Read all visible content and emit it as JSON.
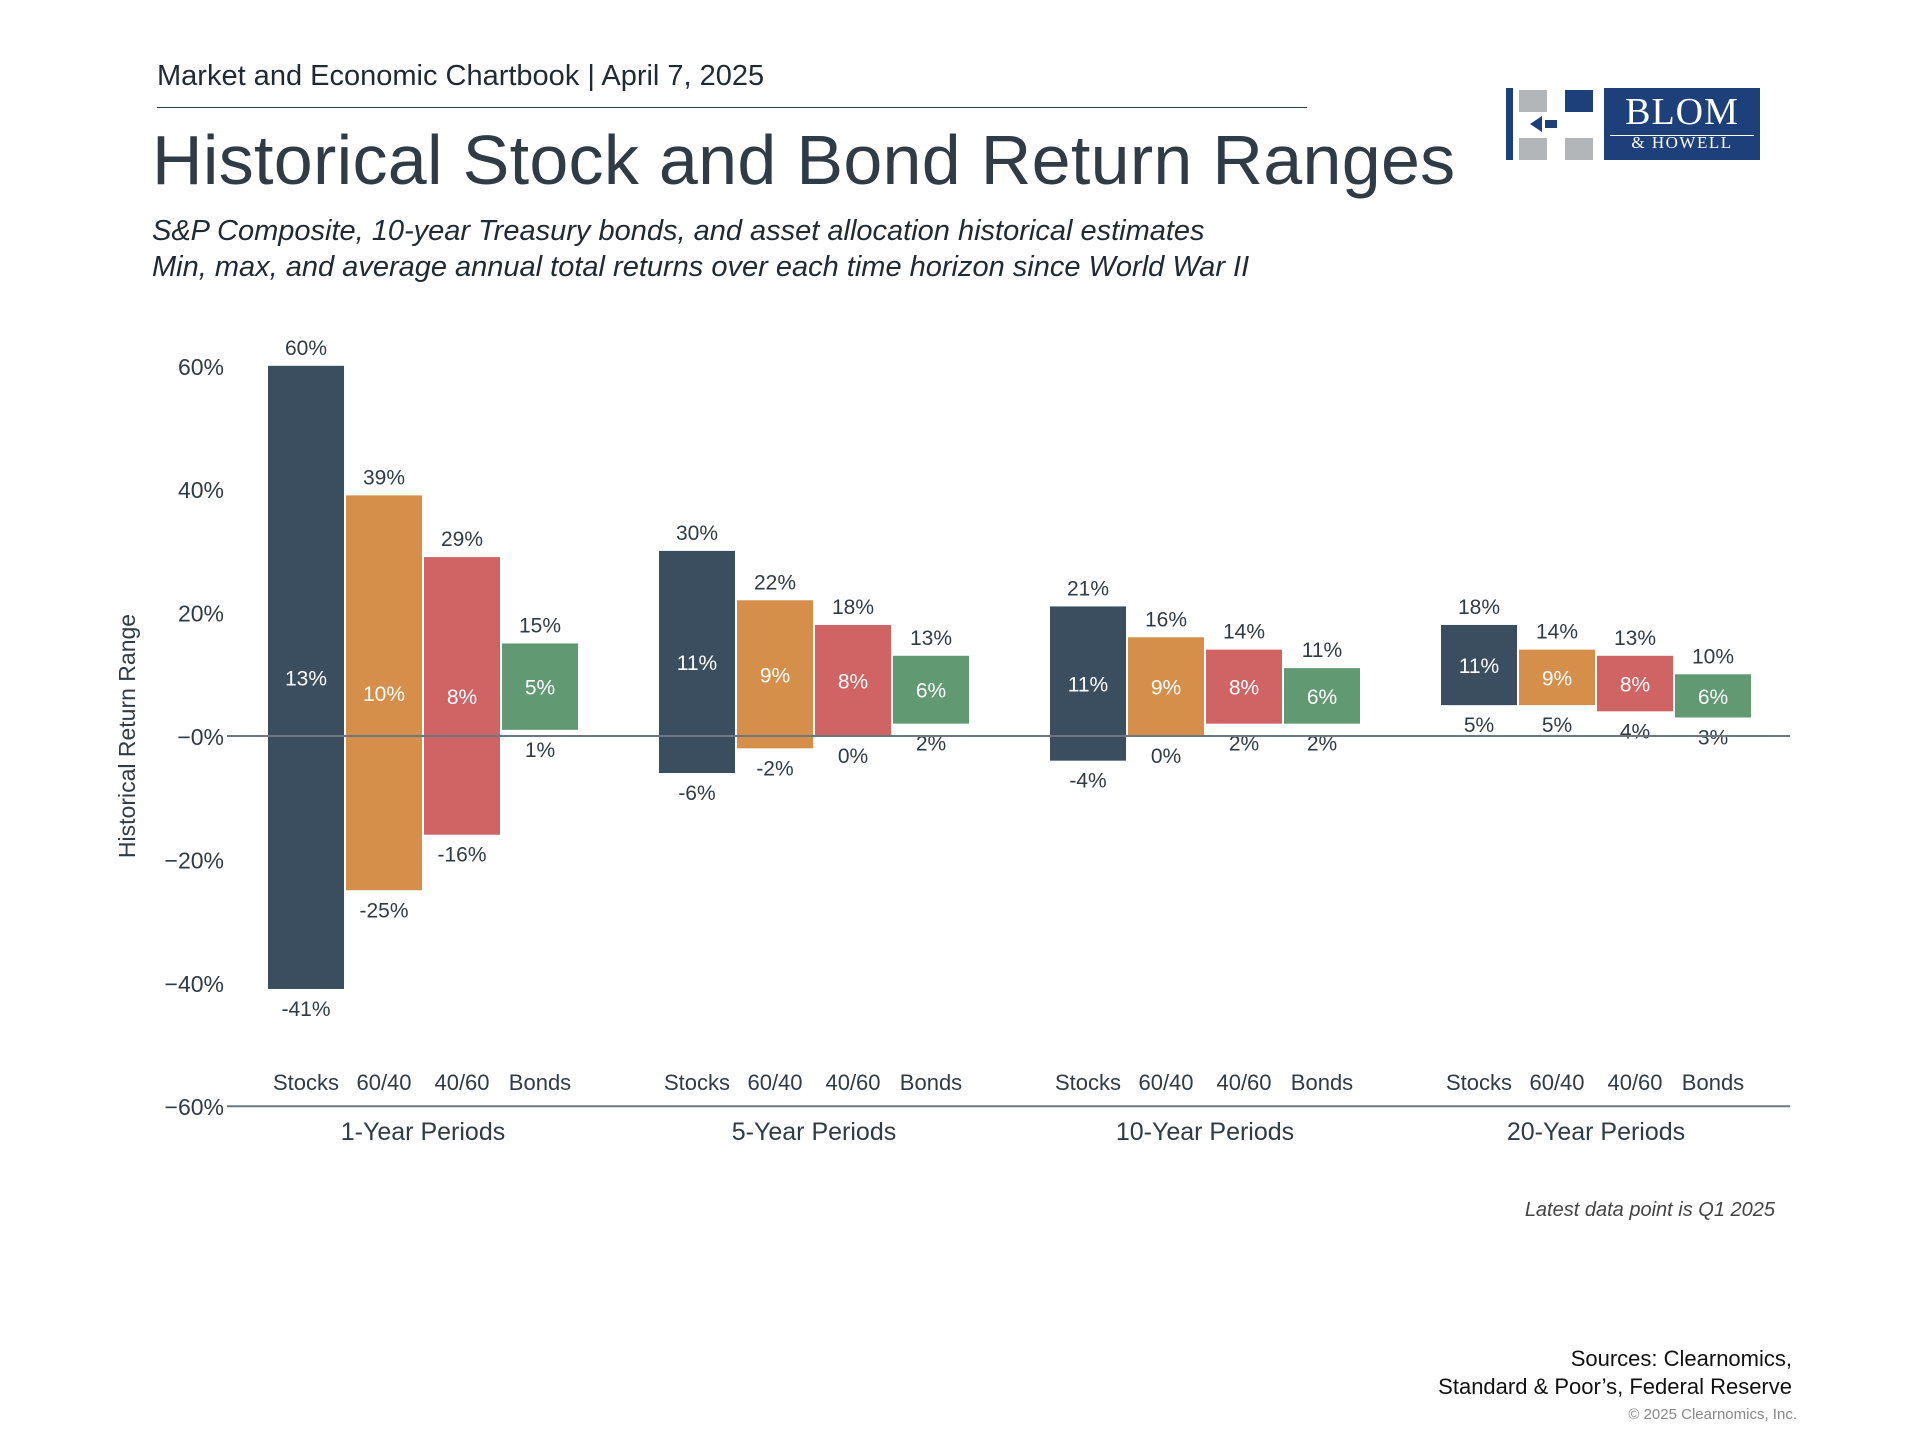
{
  "header": {
    "chartbook": "Market and Economic Chartbook | April 7, 2025",
    "title": "Historical Stock and Bond Return Ranges",
    "subtitle_1": "S&P Composite, 10-year Treasury bonds, and asset allocation historical estimates",
    "subtitle_2": "Min, max, and average annual total returns over each time horizon since World War II"
  },
  "logo": {
    "word1": "BLOM",
    "word2": "& HOWELL",
    "color": "#1d3f7a",
    "mark_color": "#b3b6b9"
  },
  "chart_data": {
    "type": "bar",
    "subtype": "floating-range",
    "ylabel": "Historical Return Range",
    "ylim": [
      -60,
      60
    ],
    "yticks": [
      60,
      40,
      20,
      0,
      -20,
      -40,
      -60
    ],
    "ytick_labels": [
      "60%",
      "40%",
      "20%",
      "−0%",
      "−20%",
      "−40%",
      "−60%"
    ],
    "grid": false,
    "groups": [
      "1-Year Periods",
      "5-Year Periods",
      "10-Year Periods",
      "20-Year Periods"
    ],
    "categories": [
      "Stocks",
      "60/40",
      "40/60",
      "Bonds"
    ],
    "colors": {
      "Stocks": "#3a4e5f",
      "60/40": "#d58f4b",
      "40/60": "#d06363",
      "Bonds": "#619a72"
    },
    "series": [
      {
        "category": "Stocks",
        "max": [
          60,
          30,
          21,
          18
        ],
        "min": [
          -41,
          -6,
          -4,
          5
        ],
        "avg": [
          13,
          11,
          11,
          11
        ]
      },
      {
        "category": "60/40",
        "max": [
          39,
          22,
          16,
          14
        ],
        "min": [
          -25,
          -2,
          0,
          5
        ],
        "avg": [
          10,
          9,
          9,
          9
        ]
      },
      {
        "category": "40/60",
        "max": [
          29,
          18,
          14,
          13
        ],
        "min": [
          -16,
          0,
          2,
          4
        ],
        "avg": [
          8,
          8,
          8,
          8
        ]
      },
      {
        "category": "Bonds",
        "max": [
          15,
          13,
          11,
          10
        ],
        "min": [
          1,
          2,
          2,
          3
        ],
        "avg": [
          5,
          6,
          6,
          6
        ]
      }
    ]
  },
  "footer": {
    "note": "Latest data point is Q1 2025",
    "sources_1": "Sources: Clearnomics,",
    "sources_2": "Standard & Poor’s, Federal Reserve",
    "copyright": "© 2025 Clearnomics, Inc."
  }
}
